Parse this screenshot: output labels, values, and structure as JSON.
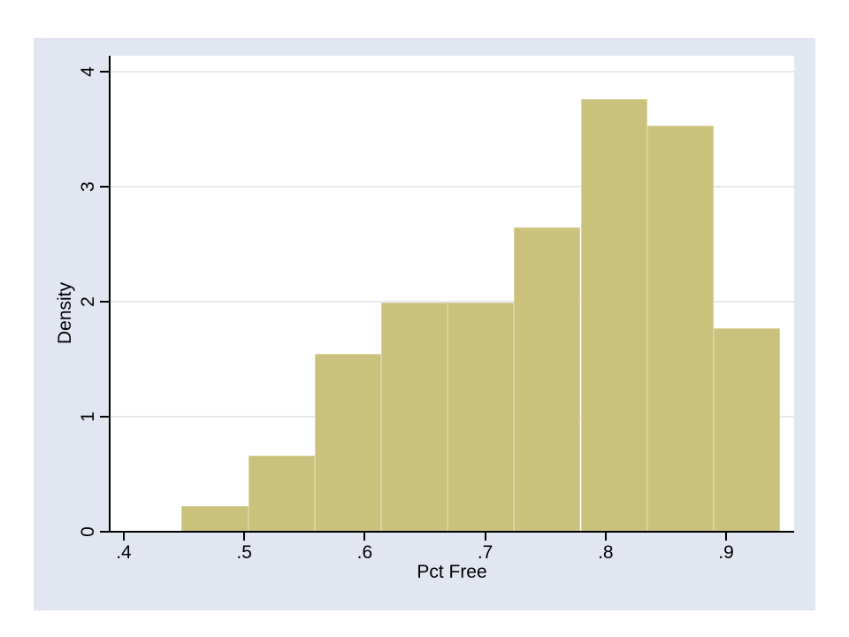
{
  "figure": {
    "background_color": "#e2e6f0",
    "plot_background_color": "#ffffff",
    "bar_fill_color": "#c9c17c",
    "bar_outline_color": "#d9d3a0",
    "grid_color": "#e8e8ee",
    "axis_color": "#000000"
  },
  "chart_data": {
    "type": "bar",
    "subtype": "histogram",
    "title": "",
    "xlabel": "Pct Free",
    "ylabel": "Density",
    "bin_start": 0.448,
    "bin_width": 0.0552,
    "values": [
      0.22,
      0.66,
      1.55,
      1.99,
      1.99,
      2.65,
      3.76,
      3.53,
      1.77
    ],
    "xlim": [
      0.389,
      0.9565
    ],
    "ylim": [
      0,
      4.138
    ],
    "x_ticks": [
      {
        "value": 0.4,
        "label": ".4"
      },
      {
        "value": 0.5,
        "label": ".5"
      },
      {
        "value": 0.6,
        "label": ".6"
      },
      {
        "value": 0.7,
        "label": ".7"
      },
      {
        "value": 0.8,
        "label": ".8"
      },
      {
        "value": 0.9,
        "label": ".9"
      }
    ],
    "y_ticks": [
      {
        "value": 0,
        "label": "0"
      },
      {
        "value": 1,
        "label": "1"
      },
      {
        "value": 2,
        "label": "2"
      },
      {
        "value": 3,
        "label": "3"
      },
      {
        "value": 4,
        "label": "4"
      }
    ],
    "grid": true,
    "legend_position": "none"
  }
}
